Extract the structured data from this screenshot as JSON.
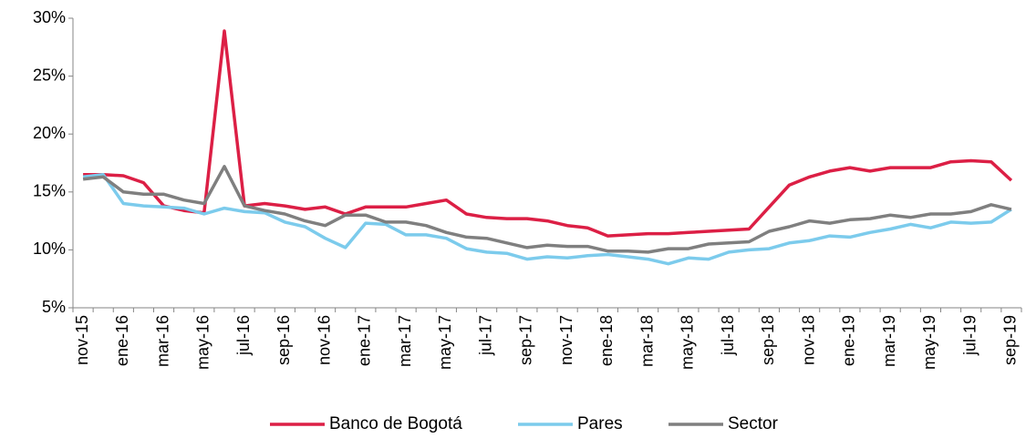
{
  "chart_data": {
    "type": "line",
    "categories": [
      "nov-15",
      null,
      "ene-16",
      null,
      "mar-16",
      null,
      "may-16",
      null,
      "jul-16",
      null,
      "sep-16",
      null,
      "nov-16",
      null,
      "ene-17",
      null,
      "mar-17",
      null,
      "may-17",
      null,
      "jul-17",
      null,
      "sep-17",
      null,
      "nov-17",
      null,
      "ene-18",
      null,
      "mar-18",
      null,
      "may-18",
      null,
      "jul-18",
      null,
      "sep-18",
      null,
      "nov-18",
      null,
      "ene-19",
      null,
      "mar-19",
      null,
      "may-19",
      null,
      "jul-19",
      null,
      "sep-19"
    ],
    "series": [
      {
        "name": "Banco de Bogotá",
        "color": "#dc1f45",
        "values": [
          16.5,
          16.5,
          16.4,
          15.8,
          13.8,
          13.4,
          13.2,
          28.9,
          13.8,
          14.0,
          13.8,
          13.5,
          13.7,
          13.1,
          13.7,
          13.7,
          13.7,
          14.0,
          14.3,
          13.1,
          12.8,
          12.7,
          12.7,
          12.5,
          12.1,
          11.9,
          11.2,
          11.3,
          11.4,
          11.4,
          11.5,
          11.6,
          11.7,
          11.8,
          13.7,
          15.6,
          16.3,
          16.8,
          17.1,
          16.8,
          17.1,
          17.1,
          17.1,
          17.6,
          17.7,
          17.6,
          16.0
        ]
      },
      {
        "name": "Pares",
        "color": "#7ccbec",
        "values": [
          16.3,
          16.5,
          14.0,
          13.8,
          13.7,
          13.6,
          13.1,
          13.6,
          13.3,
          13.2,
          12.4,
          12.0,
          11.0,
          10.2,
          12.3,
          12.2,
          11.3,
          11.3,
          11.0,
          10.1,
          9.8,
          9.7,
          9.2,
          9.4,
          9.3,
          9.5,
          9.6,
          9.4,
          9.2,
          8.8,
          9.3,
          9.2,
          9.8,
          10.0,
          10.1,
          10.6,
          10.8,
          11.2,
          11.1,
          11.5,
          11.8,
          12.2,
          11.9,
          12.4,
          12.3,
          12.4,
          13.5
        ]
      },
      {
        "name": "Sector",
        "color": "#7f7f7f",
        "values": [
          16.1,
          16.3,
          15.0,
          14.8,
          14.8,
          14.3,
          14.0,
          17.2,
          13.8,
          13.4,
          13.1,
          12.5,
          12.1,
          13.0,
          13.0,
          12.4,
          12.4,
          12.1,
          11.5,
          11.1,
          11.0,
          10.6,
          10.2,
          10.4,
          10.3,
          10.3,
          9.9,
          9.9,
          9.8,
          10.1,
          10.1,
          10.5,
          10.6,
          10.7,
          11.6,
          12.0,
          12.5,
          12.3,
          12.6,
          12.7,
          13.0,
          12.8,
          13.1,
          13.1,
          13.3,
          13.9,
          13.5
        ]
      }
    ],
    "ylim": [
      5,
      30
    ],
    "yticks": [
      {
        "value": 5,
        "label": "5%"
      },
      {
        "value": 10,
        "label": "10%"
      },
      {
        "value": 15,
        "label": "15%"
      },
      {
        "value": 20,
        "label": "20%"
      },
      {
        "value": 25,
        "label": "25%"
      },
      {
        "value": 30,
        "label": "30%"
      }
    ],
    "grid": false,
    "legend": "bottom"
  }
}
